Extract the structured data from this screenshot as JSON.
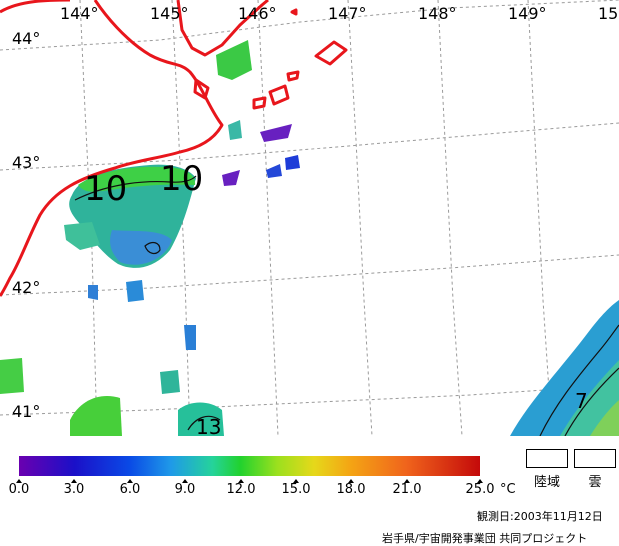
{
  "map": {
    "longitudes": [
      "144°",
      "145°",
      "146°",
      "147°",
      "148°",
      "149°",
      "15"
    ],
    "latitudes": [
      "44°",
      "43°",
      "42°",
      "41°"
    ],
    "contour_labels": [
      "10",
      "10",
      "7",
      "13"
    ],
    "coastline_color": "#e8161c",
    "grid_style": "dashed"
  },
  "colorbar": {
    "ticks": [
      "0.0",
      "3.0",
      "6.0",
      "9.0",
      "12.0",
      "15.0",
      "18.0",
      "21.0",
      "25.0"
    ],
    "unit": "°C",
    "colors": [
      "#6a00b0",
      "#1b10c8",
      "#0a4ae6",
      "#1f9ae8",
      "#25d39a",
      "#21d22e",
      "#9be01e",
      "#e6d81a",
      "#f4a414",
      "#f0641c",
      "#c40a0a"
    ]
  },
  "legend": {
    "land_label": "陸域",
    "cloud_label": "雲"
  },
  "footer": {
    "observation_date": "観測日:2003年11月12日",
    "credit": "岩手県/宇宙開発事業団 共同プロジェクト"
  }
}
